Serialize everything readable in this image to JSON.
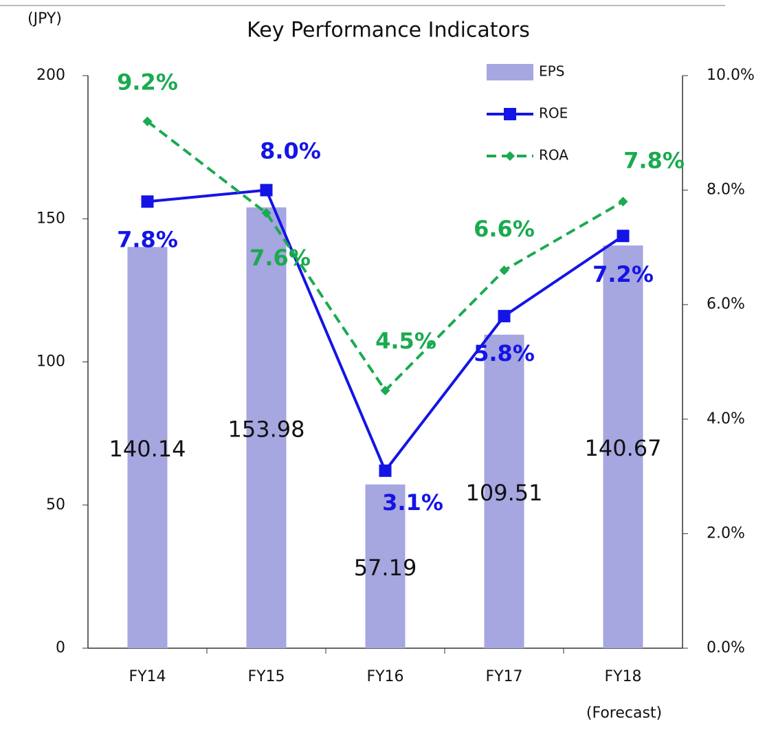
{
  "chart_data": {
    "type": "bar_line",
    "title": "Key Performance Indicators",
    "y_label": "(JPY)",
    "note": "(Forecast)",
    "categories": [
      "FY14",
      "FY15",
      "FY16",
      "FY17",
      "FY18"
    ],
    "series": [
      {
        "name": "EPS",
        "color": "#a6a6e0",
        "type": "bar",
        "values": [
          140.14,
          153.98,
          57.19,
          109.51,
          140.67
        ]
      },
      {
        "name": "ROE",
        "color": "#1414e6",
        "type": "line",
        "marker": "square",
        "axis": "y2",
        "values": [
          7.8,
          8.0,
          3.1,
          5.8,
          7.2
        ],
        "value_labels": [
          "7.8%",
          "8.0%",
          "3.1%",
          "5.8%",
          "7.2%"
        ]
      },
      {
        "name": "ROA",
        "color": "#1aaa50",
        "type": "line",
        "marker": "diamond",
        "dashed": true,
        "axis": "y2",
        "values": [
          9.2,
          7.6,
          4.5,
          6.6,
          7.8
        ],
        "value_labels": [
          "9.2%",
          "7.6%",
          "4.5%",
          "6.6%",
          "7.8%"
        ]
      }
    ],
    "ylim": [
      0,
      200
    ],
    "yticks": [
      0,
      50,
      100,
      150,
      200
    ],
    "y2lim": [
      0,
      10
    ],
    "y2ticks": [
      {
        "value": 0,
        "label": "0.0%"
      },
      {
        "value": 2,
        "label": "2.0%"
      },
      {
        "value": 4,
        "label": "4.0%"
      },
      {
        "value": 6,
        "label": "6.0%"
      },
      {
        "value": 8,
        "label": "8.0%"
      },
      {
        "value": 10,
        "label": "10.0%"
      }
    ],
    "legend": "top-right"
  }
}
